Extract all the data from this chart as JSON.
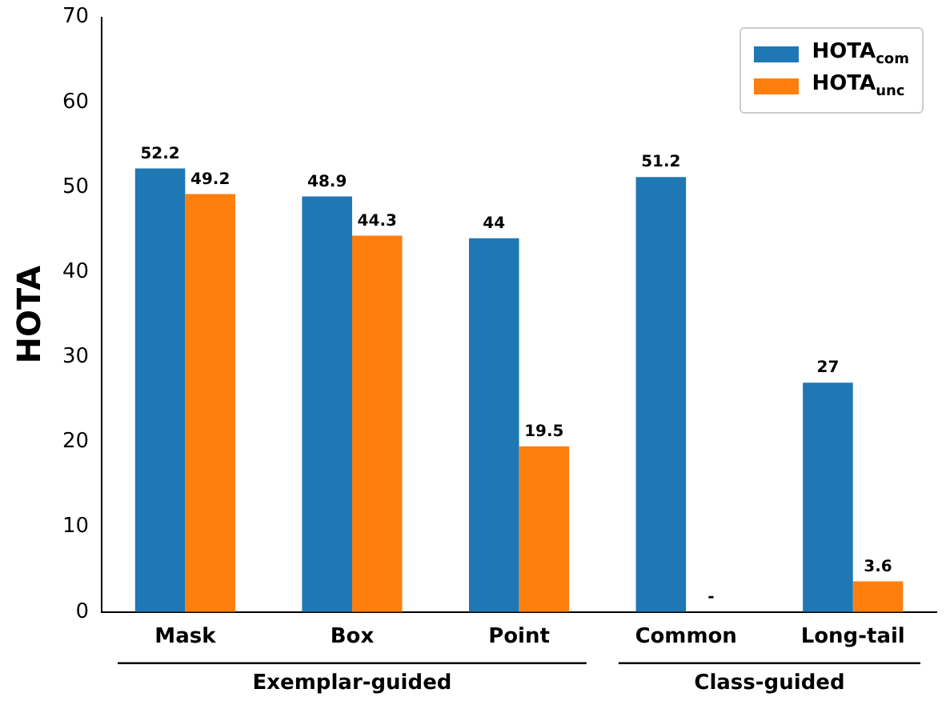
{
  "chart_data": {
    "type": "bar",
    "ylabel": "HOTA",
    "categories": [
      "Mask",
      "Box",
      "Point",
      "Common",
      "Long-tail"
    ],
    "series": [
      {
        "name": "HOTA$_{com}$",
        "color": "#1f77b4",
        "values": [
          52.2,
          48.9,
          44,
          51.2,
          27
        ],
        "value_labels": [
          "52.2",
          "48.9",
          "44",
          "51.2",
          "27"
        ]
      },
      {
        "name": "HOTA$_{unc}$",
        "color": "#ff7f0e",
        "values": [
          49.2,
          44.3,
          19.5,
          null,
          3.6
        ],
        "value_labels": [
          "49.2",
          "44.3",
          "19.5",
          "-",
          "3.6"
        ]
      }
    ],
    "ylim": [
      0,
      70
    ],
    "yticks": [
      0,
      10,
      20,
      30,
      40,
      50,
      60,
      70
    ],
    "grid": false,
    "legend": "top right",
    "annotations": [
      "Exemplar-guided",
      "Class-guided"
    ]
  }
}
